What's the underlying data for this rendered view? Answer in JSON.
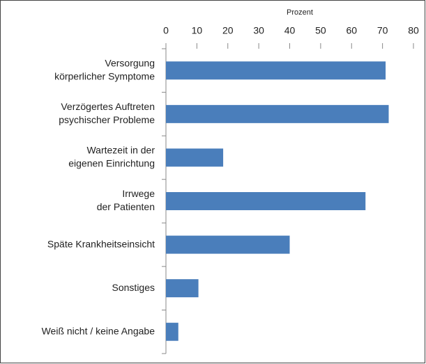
{
  "chart_data": {
    "type": "bar",
    "orientation": "horizontal",
    "x_label": "Prozent",
    "categories": [
      [
        "Versorgung",
        "körperlicher Symptome"
      ],
      [
        "Verzögertes Auftreten",
        "psychischer Probleme"
      ],
      [
        "Wartezeit in der",
        "eigenen Einrichtung"
      ],
      [
        "Irrwege",
        "der Patienten"
      ],
      [
        "Späte Krankheitseinsicht"
      ],
      [
        "Sonstiges"
      ],
      [
        "Weiß nicht / keine Angabe"
      ]
    ],
    "values": [
      71,
      72,
      18.5,
      64.5,
      40,
      10.5,
      4
    ],
    "color": "#4a7ebb",
    "xlim": [
      0,
      80
    ],
    "xticks": [
      0,
      10,
      20,
      30,
      40,
      50,
      60,
      70,
      80
    ],
    "grid": false
  }
}
